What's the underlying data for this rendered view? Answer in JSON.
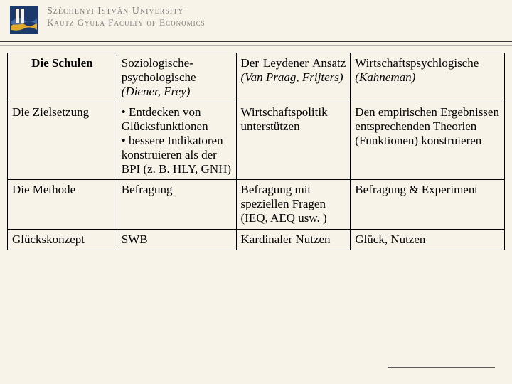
{
  "header": {
    "line1": "Széchenyi István University",
    "line2": "Kautz Gyula Faculty of Economics",
    "logo_colors": {
      "bg": "#1b3a6b",
      "wave1": "#3d6aa8",
      "wave2": "#e0a92e"
    }
  },
  "table": {
    "font_family": "Times New Roman",
    "border_color": "#000000",
    "header_cell": "Die Schulen",
    "columns": [
      {
        "title_html": "Soziologische-psychologische <span class='italic'>(Diener, Frey)</span>",
        "width_pct": 24
      },
      {
        "title_html": "Der Leydener Ansatz <span class='italic'>(Van Praag, Frijters)</span>",
        "width_pct": 23,
        "justify": true
      },
      {
        "title_html": "Wirtschaftspsychlogische <span class='italic'>(Kahneman)</span>",
        "width_pct": 31
      }
    ],
    "rows": [
      {
        "label": "Die Zielsetzung",
        "cells": [
          "• Entdecken von Glücksfunktionen<br>• bessere Indikatoren konstruieren als der BPI (z. B. HLY, GNH)",
          "Wirtschaftspolitik unterstützen",
          "Den empirischen Ergebnissen entsprechenden Theorien (Funktionen) konstruieren"
        ]
      },
      {
        "label": "Die Methode",
        "cells": [
          "Befragung",
          "Befragung mit speziellen Fragen (IEQ, AEQ usw. )",
          "Befragung & Experiment"
        ]
      },
      {
        "label": "Glückskonzept",
        "cells": [
          "SWB",
          "Kardinaler Nutzen",
          "Glück, Nutzen"
        ]
      }
    ]
  },
  "styling": {
    "background_color": "#f8f3e8",
    "text_color": "#000000",
    "body_fontsize_pt": 13,
    "header_fontsize_pt": 19,
    "footer_line_color": "#5b5a56"
  }
}
